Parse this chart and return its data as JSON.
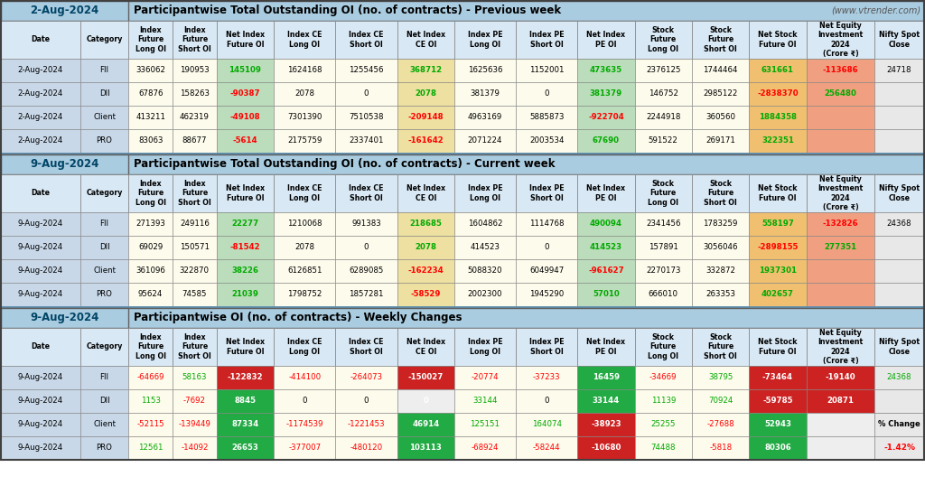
{
  "title1_date": "2-Aug-2024",
  "title1_main": "Participantwise Total Outstanding OI (no. of contracts) - Previous week",
  "title1_website": "(www.vtrender.com)",
  "title2_date": "9-Aug-2024",
  "title2_main": "Participantwise Total Outstanding OI (no. of contracts) - Current week",
  "title3_date": "9-Aug-2024",
  "title3_main": "Participantwise OI (no. of contracts) - Weekly Changes",
  "col_headers": [
    "Date",
    "Category",
    "Index\nFuture\nLong OI",
    "Index\nFuture\nShort OI",
    "Net Index\nFuture OI",
    "Index CE\nLong OI",
    "Index CE\nShort OI",
    "Net Index\nCE OI",
    "Index PE\nLong OI",
    "Index PE\nShort OI",
    "Net Index\nPE OI",
    "Stock\nFuture\nLong OI",
    "Stock\nFuture\nShort OI",
    "Net Stock\nFuture OI",
    "Net Equity\nInvestment\n2024\n(Crore ₹)",
    "Nifty Spot\nClose"
  ],
  "section1_rows": [
    [
      "2-Aug-2024",
      "FII",
      "336062",
      "190953",
      "145109",
      "1624168",
      "1255456",
      "368712",
      "1625636",
      "1152001",
      "473635",
      "2376125",
      "1744464",
      "631661",
      "-113686",
      "24718"
    ],
    [
      "2-Aug-2024",
      "DII",
      "67876",
      "158263",
      "-90387",
      "2078",
      "0",
      "2078",
      "381379",
      "0",
      "381379",
      "146752",
      "2985122",
      "-2838370",
      "256480",
      ""
    ],
    [
      "2-Aug-2024",
      "Client",
      "413211",
      "462319",
      "-49108",
      "7301390",
      "7510538",
      "-209148",
      "4963169",
      "5885873",
      "-922704",
      "2244918",
      "360560",
      "1884358",
      "",
      ""
    ],
    [
      "2-Aug-2024",
      "PRO",
      "83063",
      "88677",
      "-5614",
      "2175759",
      "2337401",
      "-161642",
      "2071224",
      "2003534",
      "67690",
      "591522",
      "269171",
      "322351",
      "",
      ""
    ]
  ],
  "section2_rows": [
    [
      "9-Aug-2024",
      "FII",
      "271393",
      "249116",
      "22277",
      "1210068",
      "991383",
      "218685",
      "1604862",
      "1114768",
      "490094",
      "2341456",
      "1783259",
      "558197",
      "-132826",
      "24368"
    ],
    [
      "9-Aug-2024",
      "DII",
      "69029",
      "150571",
      "-81542",
      "2078",
      "0",
      "2078",
      "414523",
      "0",
      "414523",
      "157891",
      "3056046",
      "-2898155",
      "277351",
      ""
    ],
    [
      "9-Aug-2024",
      "Client",
      "361096",
      "322870",
      "38226",
      "6126851",
      "6289085",
      "-162234",
      "5088320",
      "6049947",
      "-961627",
      "2270173",
      "332872",
      "1937301",
      "",
      ""
    ],
    [
      "9-Aug-2024",
      "PRO",
      "95624",
      "74585",
      "21039",
      "1798752",
      "1857281",
      "-58529",
      "2002300",
      "1945290",
      "57010",
      "666010",
      "263353",
      "402657",
      "",
      ""
    ]
  ],
  "section3_rows": [
    [
      "9-Aug-2024",
      "FII",
      "-64669",
      "58163",
      "-122832",
      "-414100",
      "-264073",
      "-150027",
      "-20774",
      "-37233",
      "16459",
      "-34669",
      "38795",
      "-73464",
      "-19140",
      "24368"
    ],
    [
      "9-Aug-2024",
      "DII",
      "1153",
      "-7692",
      "8845",
      "0",
      "0",
      "0",
      "33144",
      "0",
      "33144",
      "11139",
      "70924",
      "-59785",
      "20871",
      ""
    ],
    [
      "9-Aug-2024",
      "Client",
      "-52115",
      "-139449",
      "87334",
      "-1174539",
      "-1221453",
      "46914",
      "125151",
      "164074",
      "-38923",
      "25255",
      "-27688",
      "52943",
      "",
      ""
    ],
    [
      "9-Aug-2024",
      "PRO",
      "12561",
      "-14092",
      "26653",
      "-377007",
      "-480120",
      "103113",
      "-68924",
      "-58244",
      "-10680",
      "74488",
      "-5818",
      "80306",
      "",
      ""
    ]
  ],
  "pct_change_label": "% Change",
  "pct_change_value": "-1.42%",
  "positive_color": "#00AA00",
  "negative_color": "#FF0000",
  "normal_color": "#000000",
  "fig_bg": "#FFFFFF",
  "col_bg_default": "#FDFBEC",
  "col_bg_date_cat": "#C8D8E8",
  "col_bg_net_if": "#BBDDBB",
  "col_bg_net_ce": "#EEE0A0",
  "col_bg_net_pe": "#BBDDBB",
  "col_bg_net_sf": "#F0C070",
  "col_bg_net_eq": "#F0A080",
  "col_bg_nifty": "#E8E8E8",
  "col_hdr_bg": "#D8E8F4",
  "sec_hdr_bg": "#AACCE0",
  "sec3_net_if_bg": [
    "#CC2222",
    "#22AA44",
    "#22AA44",
    "#22AA44"
  ],
  "sec3_net_ce_bg": [
    "#CC2222",
    "#EEEEEE",
    "#22AA44",
    "#22AA44"
  ],
  "sec3_net_pe_bg": [
    "#22AA44",
    "#22AA44",
    "#CC2222",
    "#CC2222"
  ],
  "sec3_net_sf_bg": [
    "#CC2222",
    "#CC2222",
    "#22AA44",
    "#22AA44"
  ],
  "sec3_net_eq_bg": [
    "#CC2222",
    "#CC2222",
    "#EEEEEE",
    "#EEEEEE"
  ]
}
